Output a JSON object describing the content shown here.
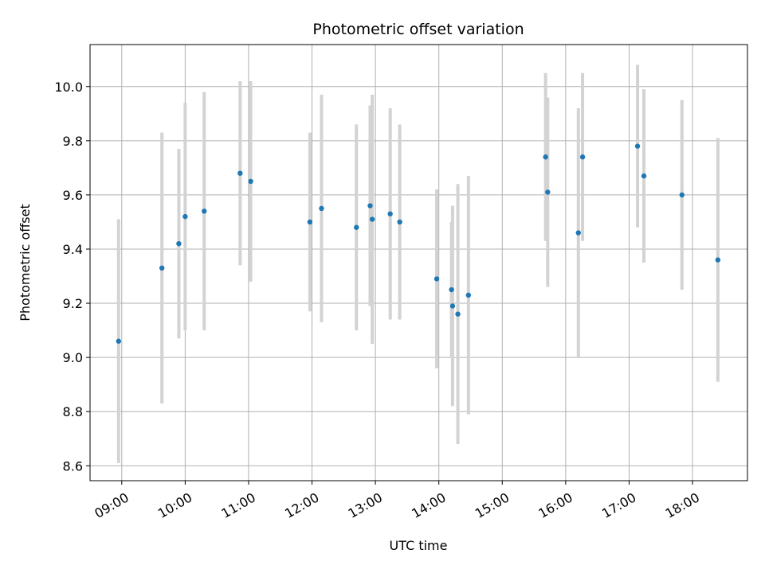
{
  "chart_data": {
    "type": "scatter",
    "title": "Photometric offset variation",
    "xlabel": "UTC time",
    "ylabel": "Photometric offset",
    "x_tick_labels": [
      "09:00",
      "10:00",
      "11:00",
      "12:00",
      "13:00",
      "14:00",
      "15:00",
      "16:00",
      "17:00",
      "18:00"
    ],
    "y_tick_labels": [
      "8.6",
      "8.8",
      "9.0",
      "9.2",
      "9.4",
      "9.6",
      "9.8",
      "10.0"
    ],
    "y_ticks": [
      8.6,
      8.8,
      9.0,
      9.2,
      9.4,
      9.6,
      9.8,
      10.0
    ],
    "xlim": [
      "08:30",
      "18:52"
    ],
    "ylim": [
      8.545,
      10.155
    ],
    "grid": true,
    "points": [
      {
        "t": "08:57",
        "y": 9.06,
        "err": 0.45
      },
      {
        "t": "09:38",
        "y": 9.33,
        "err": 0.5
      },
      {
        "t": "09:54",
        "y": 9.42,
        "err": 0.35
      },
      {
        "t": "10:00",
        "y": 9.52,
        "err": 0.42
      },
      {
        "t": "10:18",
        "y": 9.54,
        "err": 0.44
      },
      {
        "t": "10:52",
        "y": 9.68,
        "err": 0.34
      },
      {
        "t": "11:02",
        "y": 9.65,
        "err": 0.37
      },
      {
        "t": "11:58",
        "y": 9.5,
        "err": 0.33
      },
      {
        "t": "12:09",
        "y": 9.55,
        "err": 0.42
      },
      {
        "t": "12:42",
        "y": 9.48,
        "err": 0.38
      },
      {
        "t": "12:55",
        "y": 9.56,
        "err": 0.37
      },
      {
        "t": "12:57",
        "y": 9.51,
        "err": 0.46
      },
      {
        "t": "13:14",
        "y": 9.53,
        "err": 0.39
      },
      {
        "t": "13:23",
        "y": 9.5,
        "err": 0.36
      },
      {
        "t": "13:58",
        "y": 9.29,
        "err": 0.33
      },
      {
        "t": "14:12",
        "y": 9.25,
        "err": 0.25
      },
      {
        "t": "14:13",
        "y": 9.19,
        "err": 0.37
      },
      {
        "t": "14:18",
        "y": 9.16,
        "err": 0.48
      },
      {
        "t": "14:28",
        "y": 9.23,
        "err": 0.44
      },
      {
        "t": "15:41",
        "y": 9.74,
        "err": 0.31
      },
      {
        "t": "15:43",
        "y": 9.61,
        "err": 0.35
      },
      {
        "t": "16:12",
        "y": 9.46,
        "err": 0.46
      },
      {
        "t": "16:16",
        "y": 9.74,
        "err": 0.31
      },
      {
        "t": "17:08",
        "y": 9.78,
        "err": 0.3
      },
      {
        "t": "17:14",
        "y": 9.67,
        "err": 0.32
      },
      {
        "t": "17:50",
        "y": 9.6,
        "err": 0.35
      },
      {
        "t": "18:24",
        "y": 9.36,
        "err": 0.45
      }
    ],
    "colors": {
      "marker": "#1f77b4",
      "errorbar": "#d3d3d3",
      "grid": "#b0b0b0",
      "axis": "#000000"
    }
  }
}
